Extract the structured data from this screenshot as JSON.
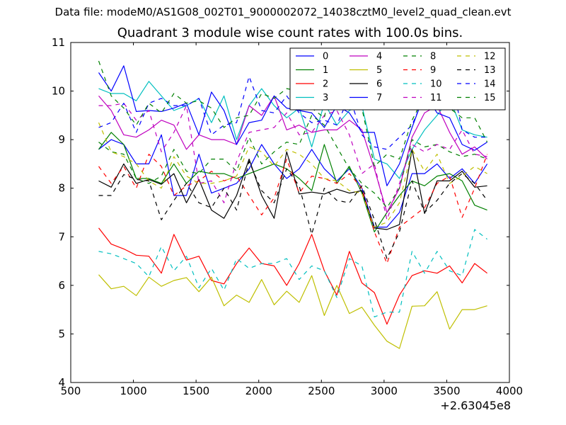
{
  "suptitle": "Data file: modeM0/AS1G08_002T01_9000002072_14038cztM0_level2_quad_clean.evt",
  "chart_data": {
    "type": "line",
    "title": "Quadrant 3 module wise count rates with 100.0s bins.",
    "xlabel": "",
    "ylabel": "",
    "x_offset_label": "+2.63045e8",
    "xlim": [
      500,
      4000
    ],
    "ylim": [
      4,
      11
    ],
    "xticks": [
      500,
      1000,
      1500,
      2000,
      2500,
      3000,
      3500,
      4000
    ],
    "yticks": [
      4,
      5,
      6,
      7,
      8,
      9,
      10,
      11
    ],
    "grid": false,
    "legend": {
      "placement": "top-right",
      "columns": 4
    },
    "x": [
      723,
      823,
      923,
      1023,
      1123,
      1223,
      1323,
      1423,
      1523,
      1623,
      1723,
      1823,
      1923,
      2023,
      2123,
      2223,
      2323,
      2423,
      2523,
      2623,
      2723,
      2823,
      2923,
      3023,
      3123,
      3223,
      3323,
      3423,
      3523,
      3623,
      3723,
      3823
    ],
    "series": [
      {
        "name": "0",
        "color": "#0000ff",
        "dash": "solid",
        "values": [
          8.8,
          9.0,
          8.9,
          8.5,
          8.5,
          9.1,
          7.85,
          7.85,
          8.7,
          7.9,
          8.0,
          8.1,
          8.4,
          8.9,
          8.5,
          8.2,
          8.4,
          8.8,
          8.4,
          8.15,
          8.4,
          8.0,
          7.2,
          7.2,
          7.5,
          8.3,
          8.3,
          8.5,
          8.2,
          8.4,
          8.1,
          8.5
        ]
      },
      {
        "name": "1",
        "color": "#008000",
        "dash": "solid",
        "values": [
          8.8,
          9.15,
          8.9,
          8.2,
          8.2,
          8.1,
          8.5,
          8.1,
          8.35,
          8.3,
          8.3,
          8.2,
          8.3,
          8.4,
          8.5,
          8.4,
          8.2,
          7.95,
          8.9,
          8.1,
          8.45,
          7.9,
          7.1,
          7.5,
          7.85,
          8.15,
          8.05,
          8.25,
          8.3,
          8.15,
          7.65,
          7.55
        ]
      },
      {
        "name": "2",
        "color": "#ff0000",
        "dash": "solid",
        "values": [
          7.18,
          6.85,
          6.75,
          6.62,
          6.6,
          6.25,
          7.05,
          6.52,
          6.6,
          6.1,
          6.03,
          6.45,
          6.77,
          6.45,
          6.4,
          6.0,
          6.45,
          7.05,
          6.3,
          5.8,
          6.7,
          6.05,
          5.85,
          5.2,
          5.8,
          6.2,
          6.3,
          6.25,
          6.4,
          6.05,
          6.45,
          6.25
        ]
      },
      {
        "name": "3",
        "color": "#00bfbf",
        "dash": "solid",
        "values": [
          10.05,
          9.95,
          9.95,
          9.8,
          10.2,
          9.9,
          9.6,
          9.7,
          9.85,
          9.35,
          9.9,
          9.0,
          9.7,
          10.05,
          9.7,
          9.45,
          9.65,
          8.85,
          9.75,
          9.3,
          9.6,
          9.7,
          8.6,
          8.5,
          8.2,
          8.8,
          9.2,
          9.5,
          9.85,
          9.2,
          9.1,
          9.05
        ]
      },
      {
        "name": "4",
        "color": "#bf00bf",
        "dash": "solid",
        "values": [
          9.9,
          9.6,
          9.1,
          9.05,
          9.2,
          9.4,
          9.3,
          8.8,
          9.1,
          9.0,
          9.0,
          8.9,
          9.7,
          9.5,
          9.9,
          9.2,
          9.3,
          9.15,
          9.2,
          9.2,
          9.4,
          9.2,
          8.4,
          7.5,
          8.0,
          9.05,
          9.55,
          9.7,
          9.15,
          8.7,
          8.85,
          8.6
        ]
      },
      {
        "name": "5",
        "color": "#bfbf00",
        "dash": "solid",
        "values": [
          6.22,
          5.93,
          5.98,
          5.79,
          6.17,
          5.98,
          6.1,
          6.16,
          5.87,
          6.17,
          5.58,
          5.8,
          5.65,
          6.12,
          5.6,
          5.88,
          5.65,
          6.2,
          5.38,
          6.0,
          5.42,
          5.55,
          5.18,
          4.85,
          4.7,
          5.57,
          5.58,
          5.87,
          5.1,
          5.5,
          5.5,
          5.58
        ]
      },
      {
        "name": "6",
        "color": "#000000",
        "dash": "solid",
        "values": [
          8.15,
          8.02,
          8.5,
          8.1,
          8.18,
          8.08,
          8.3,
          7.7,
          8.18,
          7.55,
          7.38,
          7.85,
          8.6,
          7.85,
          7.38,
          8.75,
          7.88,
          7.92,
          7.88,
          7.98,
          7.9,
          7.95,
          7.18,
          7.15,
          7.25,
          8.8,
          7.48,
          8.15,
          8.15,
          8.35,
          8.02,
          8.05
        ]
      },
      {
        "name": "7",
        "color": "#0000ff",
        "dash": "solid",
        "values": [
          10.38,
          10.0,
          10.52,
          9.58,
          9.6,
          9.58,
          9.65,
          9.75,
          9.1,
          9.98,
          9.6,
          8.9,
          9.35,
          9.4,
          9.9,
          9.65,
          9.6,
          9.55,
          9.25,
          9.7,
          9.55,
          9.15,
          9.15,
          8.05,
          8.5,
          9.25,
          9.95,
          9.55,
          9.45,
          8.9,
          8.78,
          8.95
        ]
      },
      {
        "name": "8",
        "color": "#008000",
        "dash": "dashed",
        "values": [
          8.95,
          8.75,
          8.7,
          8.2,
          8.1,
          8.25,
          8.8,
          8.35,
          8.3,
          8.6,
          8.6,
          8.35,
          9.05,
          8.5,
          8.75,
          8.95,
          8.9,
          9.5,
          9.3,
          8.85,
          8.4,
          8.1,
          7.9,
          7.6,
          8.0,
          9.0,
          8.85,
          8.9,
          8.75,
          8.65,
          8.7,
          8.6
        ]
      },
      {
        "name": "9",
        "color": "#ff0000",
        "dash": "dashed",
        "values": [
          8.45,
          8.1,
          8.45,
          8.0,
          8.7,
          8.45,
          7.85,
          8.05,
          8.15,
          8.35,
          8.15,
          8.25,
          7.85,
          7.45,
          7.8,
          8.6,
          7.9,
          8.25,
          8.2,
          8.1,
          8.3,
          8.0,
          7.1,
          6.45,
          7.2,
          7.4,
          7.6,
          8.1,
          8.25,
          7.4,
          8.0,
          8.7
        ]
      },
      {
        "name": "10",
        "color": "#00bfbf",
        "dash": "dashed",
        "values": [
          6.7,
          6.65,
          6.55,
          6.45,
          6.18,
          6.8,
          6.3,
          6.6,
          5.95,
          6.35,
          5.9,
          6.55,
          6.35,
          6.45,
          6.45,
          6.55,
          6.12,
          6.4,
          6.3,
          5.75,
          6.55,
          6.4,
          5.35,
          5.45,
          5.45,
          6.7,
          6.25,
          6.7,
          6.3,
          6.2,
          7.15,
          6.95
        ]
      },
      {
        "name": "11",
        "color": "#bf00bf",
        "dash": "dashed",
        "values": [
          9.7,
          9.7,
          9.75,
          9.4,
          9.6,
          8.75,
          9.15,
          9.7,
          8.1,
          8.15,
          7.7,
          8.55,
          9.15,
          9.2,
          9.25,
          9.55,
          9.1,
          9.15,
          9.5,
          9.6,
          9.1,
          8.3,
          8.5,
          7.35,
          8.1,
          8.9,
          8.75,
          8.9,
          8.8,
          9.2,
          8.7,
          8.65
        ]
      },
      {
        "name": "12",
        "color": "#bfbf00",
        "dash": "dashed",
        "values": [
          9.35,
          8.75,
          8.65,
          8.5,
          8.15,
          8.0,
          8.65,
          8.25,
          8.1,
          8.1,
          8.15,
          8.25,
          8.85,
          8.75,
          8.45,
          8.8,
          8.7,
          8.5,
          8.2,
          8.15,
          7.95,
          7.9,
          7.2,
          7.3,
          7.7,
          8.8,
          8.35,
          8.7,
          8.1,
          8.25,
          8.45,
          8.3
        ]
      },
      {
        "name": "13",
        "color": "#000000",
        "dash": "dashed",
        "values": [
          7.85,
          7.85,
          8.28,
          8.18,
          8.15,
          7.35,
          7.75,
          8.1,
          7.7,
          7.6,
          8.0,
          7.55,
          8.55,
          7.95,
          7.7,
          8.4,
          8.05,
          7.05,
          8.0,
          7.75,
          7.7,
          8.05,
          7.35,
          6.55,
          7.1,
          8.15,
          7.5,
          7.75,
          8.1,
          8.3,
          8.1,
          7.75
        ]
      },
      {
        "name": "14",
        "color": "#0000ff",
        "dash": "dashed",
        "values": [
          9.25,
          9.35,
          9.75,
          9.15,
          9.75,
          9.85,
          9.7,
          9.7,
          9.85,
          9.1,
          9.3,
          9.35,
          10.3,
          9.6,
          9.55,
          9.9,
          9.55,
          9.35,
          9.4,
          9.3,
          9.9,
          9.1,
          8.85,
          8.8,
          9.05,
          9.3,
          9.9,
          10.15,
          10.4,
          9.2,
          9.05,
          9.05
        ]
      },
      {
        "name": "15",
        "color": "#008000",
        "dash": "dashed",
        "values": [
          10.62,
          9.9,
          9.65,
          9.3,
          9.75,
          9.55,
          9.95,
          9.75,
          9.8,
          9.65,
          9.25,
          9.45,
          9.5,
          9.95,
          9.85,
          10.05,
          10.0,
          9.65,
          9.45,
          10.75,
          10.0,
          9.65,
          8.45,
          8.7,
          8.6,
          9.4,
          9.9,
          10.05,
          9.65,
          9.45,
          9.45,
          8.95
        ]
      }
    ]
  }
}
